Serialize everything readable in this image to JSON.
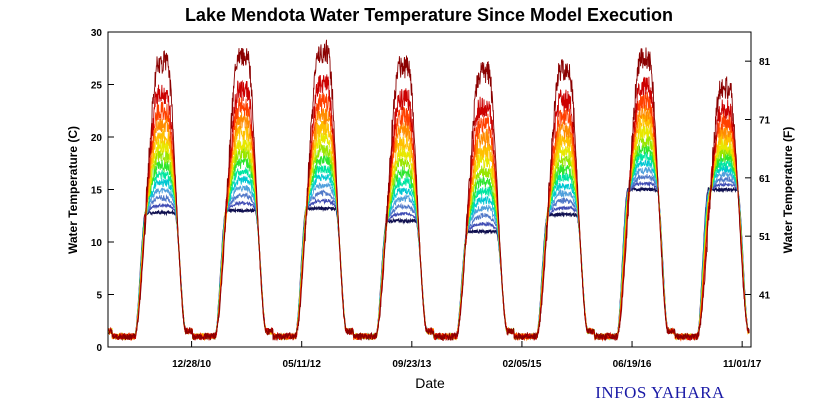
{
  "chart_data": {
    "type": "line",
    "title": "Lake Mendota Water Temperature Since Model Execution",
    "xlabel": "Date",
    "ylabel_left": "Water Temperature (C)",
    "ylabel_right": "Water Temperature (F)",
    "ylim_left": [
      0,
      30
    ],
    "ylim_right_f": [
      32,
      86
    ],
    "y_ticks_left": [
      "0",
      "5",
      "10",
      "15",
      "20",
      "25",
      "30"
    ],
    "y_ticks_right": [
      "41",
      "51",
      "61",
      "71",
      "81"
    ],
    "x_range_years": [
      2009.95,
      2017.95
    ],
    "x_ticks": [
      {
        "label": "12/28/10",
        "year": 2010.99
      },
      {
        "label": "05/11/12",
        "year": 2012.36
      },
      {
        "label": "09/23/13",
        "year": 2013.73
      },
      {
        "label": "02/05/15",
        "year": 2015.1
      },
      {
        "label": "06/19/16",
        "year": 2016.47
      },
      {
        "label": "11/01/17",
        "year": 2017.84
      }
    ],
    "grid": false,
    "legend": "none",
    "series_note_colors": [
      "#8b0000",
      "#cc0000",
      "#ff4000",
      "#ff8c00",
      "#ffc000",
      "#e8e800",
      "#9ae600",
      "#2ee62e",
      "#00e6a0",
      "#00c8d2",
      "#50a0dc",
      "#5078c8",
      "#404cb4",
      "#101050"
    ],
    "summer_peaks_surface_c": [
      {
        "year": 2010,
        "peak": 27.2
      },
      {
        "year": 2011,
        "peak": 27.6
      },
      {
        "year": 2012,
        "peak": 28.1
      },
      {
        "year": 2013,
        "peak": 26.7
      },
      {
        "year": 2014,
        "peak": 26.2
      },
      {
        "year": 2015,
        "peak": 26.5
      },
      {
        "year": 2016,
        "peak": 27.5
      },
      {
        "year": 2017,
        "peak": 24.7
      }
    ],
    "bottom_summer_c": [
      {
        "year": 2010,
        "value": 12.8
      },
      {
        "year": 2011,
        "value": 13.0
      },
      {
        "year": 2012,
        "value": 13.2
      },
      {
        "year": 2013,
        "value": 12.0
      },
      {
        "year": 2014,
        "value": 11.0
      },
      {
        "year": 2015,
        "value": 12.6
      },
      {
        "year": 2016,
        "value": 15.0
      },
      {
        "year": 2017,
        "value": 15.0
      }
    ]
  },
  "footer": {
    "brand": "INFOS YAHARA"
  }
}
